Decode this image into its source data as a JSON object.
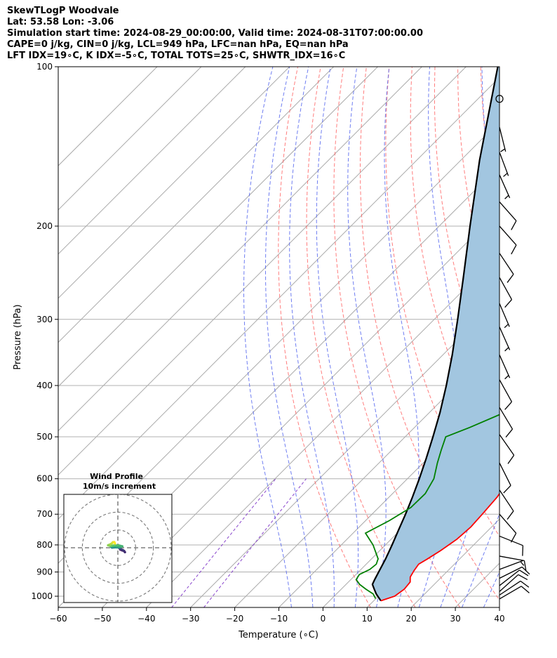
{
  "header": {
    "line1": "SkewTLogP Woodvale",
    "line2": "Lat: 53.58   Lon: -3.06",
    "line3": "Simulation start time: 2024-08-29_00:00:00, Valid time: 2024-08-31T07:00:00.00",
    "line4": "CAPE=0 j/kg, CIN=0 j/kg, LCL=949 hPa, LFC=nan hPa, EQ=nan hPa",
    "line5": "LFT IDX=19∘C, K IDX=-5∘C, TOTAL TOTS=25∘C, SHWTR_IDX=16∘C"
  },
  "colors": {
    "temperature": "#ff0000",
    "dewpoint": "#008000",
    "parcel": "#000000",
    "fill": "#a2c6e0",
    "dry_adiabat": "#ff6666",
    "moist_adiabat": "#5566ee",
    "mixing_ratio": "#8844cc",
    "isotherm": "#aaaaaa",
    "grid": "#b0b0b0"
  },
  "chart_data": {
    "type": "line",
    "xlabel": "Temperature (∘C)",
    "ylabel": "Pressure (hPa)",
    "xlim": [
      -60,
      40
    ],
    "ylim": [
      1050,
      100
    ],
    "log_y": true,
    "skew": true,
    "x_ticks": [
      "−60",
      "−50",
      "−40",
      "−30",
      "−20",
      "−10",
      "0",
      "10",
      "20",
      "30",
      "40"
    ],
    "x_tick_values": [
      -60,
      -50,
      -40,
      -30,
      -20,
      -10,
      0,
      10,
      20,
      30,
      40
    ],
    "y_ticks": [
      "100",
      "200",
      "300",
      "400",
      "500",
      "600",
      "700",
      "800",
      "900",
      "1000"
    ],
    "y_tick_values": [
      100,
      200,
      300,
      400,
      500,
      600,
      700,
      800,
      900,
      1000
    ],
    "grid": true,
    "series": [
      {
        "key": "temperature",
        "points": [
          [
            1020,
            11.6
          ],
          [
            1000,
            13.7
          ],
          [
            970,
            14.3
          ],
          [
            940,
            14.0
          ],
          [
            920,
            12.9
          ],
          [
            895,
            12.3
          ],
          [
            870,
            11.9
          ],
          [
            850,
            12.7
          ],
          [
            820,
            13.8
          ],
          [
            780,
            14.9
          ],
          [
            740,
            15.3
          ],
          [
            700,
            15.0
          ],
          [
            650,
            14.5
          ],
          [
            600,
            13.2
          ],
          [
            550,
            11.8
          ],
          [
            500,
            10.1
          ],
          [
            450,
            8.6
          ],
          [
            410,
            7.5
          ],
          [
            380,
            5.9
          ],
          [
            350,
            3.6
          ],
          [
            320,
            1.0
          ],
          [
            300,
            -1.2
          ],
          [
            270,
            -5.8
          ],
          [
            250,
            -9.2
          ],
          [
            230,
            -12.5
          ],
          [
            215,
            -15.0
          ],
          [
            205,
            -16.0
          ],
          [
            200,
            -15.0
          ],
          [
            190,
            -12.3
          ],
          [
            180,
            -10.5
          ],
          [
            170,
            -8.6
          ],
          [
            160,
            -7.0
          ],
          [
            150,
            -4.0
          ],
          [
            140,
            -4.5
          ],
          [
            130,
            -7.5
          ],
          [
            120,
            -10.5
          ],
          [
            110,
            -13.5
          ],
          [
            100,
            -17.0
          ]
        ]
      },
      {
        "key": "dewpoint",
        "points": [
          [
            1010,
            9.9
          ],
          [
            990,
            8.3
          ],
          [
            970,
            5.6
          ],
          [
            950,
            3.1
          ],
          [
            930,
            1.2
          ],
          [
            910,
            0.8
          ],
          [
            890,
            2.0
          ],
          [
            870,
            2.3
          ],
          [
            850,
            1.5
          ],
          [
            800,
            -2.8
          ],
          [
            760,
            -7.2
          ],
          [
            720,
            -4.6
          ],
          [
            680,
            -2.7
          ],
          [
            640,
            -2.6
          ],
          [
            600,
            -4.0
          ],
          [
            560,
            -6.8
          ],
          [
            530,
            -8.8
          ],
          [
            500,
            -10.8
          ],
          [
            480,
            -7.5
          ],
          [
            450,
            -3.0
          ],
          [
            420,
            -4.7
          ],
          [
            390,
            -7.0
          ],
          [
            360,
            -10.5
          ],
          [
            340,
            -12.5
          ],
          [
            320,
            -15.3
          ],
          [
            300,
            -17.0
          ],
          [
            290,
            -16.0
          ],
          [
            270,
            -16.5
          ],
          [
            250,
            -17.5
          ],
          [
            230,
            -20.8
          ],
          [
            215,
            -22.0
          ],
          [
            200,
            -21.5
          ],
          [
            190,
            -23.5
          ],
          [
            180,
            -25.0
          ],
          [
            170,
            -25.8
          ],
          [
            160,
            -27.0
          ],
          [
            150,
            -26.0
          ],
          [
            140,
            -27.0
          ],
          [
            120,
            -28.5
          ],
          [
            100,
            -30.5
          ]
        ]
      },
      {
        "key": "parcel",
        "points": [
          [
            1020,
            11.6
          ],
          [
            990,
            9.0
          ],
          [
            970,
            7.5
          ],
          [
            950,
            6.0
          ],
          [
            930,
            5.4
          ],
          [
            900,
            4.6
          ],
          [
            850,
            3.2
          ],
          [
            800,
            1.5
          ],
          [
            750,
            -0.4
          ],
          [
            700,
            -2.4
          ],
          [
            650,
            -4.7
          ],
          [
            600,
            -7.3
          ],
          [
            550,
            -10.3
          ],
          [
            500,
            -13.7
          ],
          [
            450,
            -17.6
          ],
          [
            400,
            -22.3
          ],
          [
            350,
            -27.9
          ],
          [
            300,
            -34.7
          ],
          [
            250,
            -42.9
          ],
          [
            200,
            -53.0
          ],
          [
            150,
            -65.8
          ],
          [
            100,
            -82.8
          ]
        ]
      }
    ],
    "dry_adiabats_theta_k": [
      280,
      290,
      300,
      310,
      320,
      330,
      340,
      350,
      360,
      370,
      380,
      390,
      400,
      410,
      420,
      430,
      440
    ],
    "moist_adiabats_theta_c": [
      -10,
      -5,
      0,
      5,
      10,
      15,
      20,
      25,
      30,
      35
    ],
    "mixing_ratio_lines_gkg": [
      0.2,
      0.4
    ],
    "wind_barbs": [
      {
        "p": 1012,
        "u": -12,
        "v": -7
      },
      {
        "p": 995,
        "u": -12,
        "v": -8
      },
      {
        "p": 980,
        "u": -10,
        "v": -9
      },
      {
        "p": 955,
        "u": -9,
        "v": -7
      },
      {
        "p": 925,
        "u": -10,
        "v": -5
      },
      {
        "p": 890,
        "u": -8,
        "v": -3
      },
      {
        "p": 840,
        "u": -11,
        "v": 2
      },
      {
        "p": 770,
        "u": -10,
        "v": 4
      },
      {
        "p": 700,
        "u": -7,
        "v": 8
      },
      {
        "p": 630,
        "u": -6,
        "v": 9
      },
      {
        "p": 560,
        "u": -5,
        "v": 10
      },
      {
        "p": 495,
        "u": -7,
        "v": 10
      },
      {
        "p": 440,
        "u": -6,
        "v": 10
      },
      {
        "p": 390,
        "u": -5,
        "v": 9
      },
      {
        "p": 350,
        "u": -4,
        "v": 9
      },
      {
        "p": 310,
        "u": -4,
        "v": 9
      },
      {
        "p": 280,
        "u": -3,
        "v": 7
      },
      {
        "p": 250,
        "u": -5,
        "v": 9
      },
      {
        "p": 225,
        "u": -6,
        "v": 9
      },
      {
        "p": 200,
        "u": -8,
        "v": 9
      },
      {
        "p": 180,
        "u": -8,
        "v": 9
      },
      {
        "p": 160,
        "u": -4,
        "v": 9
      },
      {
        "p": 145,
        "u": -3,
        "v": 8
      },
      {
        "p": 130,
        "u": -2,
        "v": 8
      },
      {
        "p": 115,
        "u": 0,
        "v": 0
      }
    ],
    "inset": {
      "title_line1": "Wind Profile",
      "title_line2": "10m/s increment",
      "rings": [
        10,
        20,
        30
      ],
      "max": 30,
      "hodograph": [
        [
          1.3,
          -1.0
        ],
        [
          2.5,
          -1.5
        ],
        [
          3.5,
          -1.8
        ],
        [
          4.0,
          -2.5
        ],
        [
          3.0,
          -1.4
        ],
        [
          1.2,
          -0.6
        ],
        [
          0.5,
          0.0
        ],
        [
          -0.5,
          0.5
        ],
        [
          -1.5,
          0.5
        ],
        [
          -2.0,
          0.2
        ],
        [
          -3.3,
          0.1
        ],
        [
          -3.8,
          0.5
        ],
        [
          -3.0,
          0.3
        ],
        [
          -0.5,
          0.2
        ],
        [
          1.5,
          0.4
        ],
        [
          2.5,
          0.8
        ],
        [
          0.5,
          1.3
        ],
        [
          -2.0,
          1.3
        ],
        [
          -4.0,
          1.0
        ],
        [
          -5.5,
          1.4
        ],
        [
          -4.3,
          1.9
        ],
        [
          -3.3,
          2.5
        ],
        [
          -2.8,
          3.1
        ],
        [
          -2.0,
          3.2
        ],
        [
          -1.6,
          2.4
        ]
      ]
    }
  }
}
